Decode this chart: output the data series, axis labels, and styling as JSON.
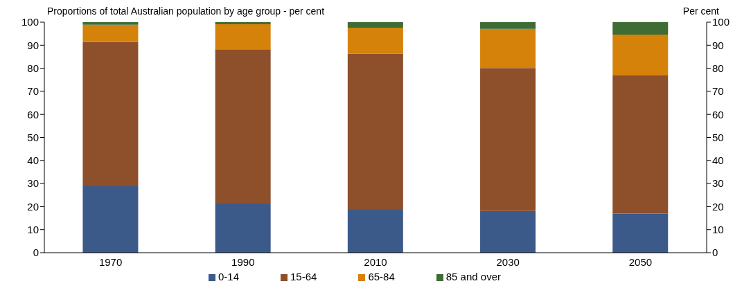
{
  "chart_data": {
    "type": "bar",
    "title": "Proportions of total Australian population by age group - per cent",
    "y2label": "Per cent",
    "categories": [
      "1970",
      "1990",
      "2010",
      "2030",
      "2050"
    ],
    "stacked": true,
    "series": [
      {
        "name": "0-14",
        "color": "#3b5a8a",
        "values": [
          28.8,
          21.3,
          18.6,
          18.1,
          17.0
        ]
      },
      {
        "name": "15-64",
        "color": "#8e4f2b",
        "values": [
          62.6,
          66.9,
          67.7,
          62.0,
          59.9
        ]
      },
      {
        "name": "65-84",
        "color": "#d4820a",
        "values": [
          7.5,
          10.9,
          11.3,
          17.0,
          17.7
        ]
      },
      {
        "name": "85 and over",
        "color": "#3f6b34",
        "values": [
          1.1,
          0.9,
          2.4,
          2.9,
          5.4
        ]
      }
    ],
    "ylim": [
      0,
      100
    ],
    "yticks": [
      0,
      10,
      20,
      30,
      40,
      50,
      60,
      70,
      80,
      90,
      100
    ],
    "y2lim": [
      0,
      100
    ],
    "y2ticks": [
      0,
      10,
      20,
      30,
      40,
      50,
      60,
      70,
      80,
      90,
      100
    ],
    "grid": false,
    "legend": "bottom"
  }
}
